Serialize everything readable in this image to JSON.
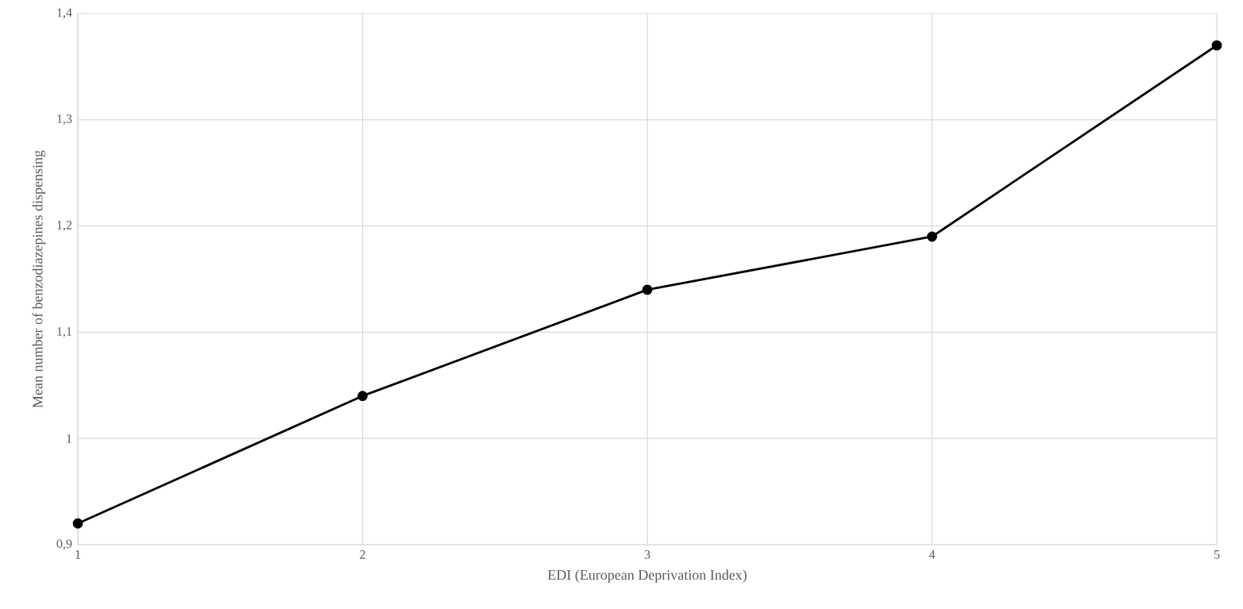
{
  "chart_data": {
    "type": "line",
    "xlabel": "EDI (European Deprivation Index)",
    "ylabel": "Mean number of benzodiazepines dispensing",
    "x": [
      1,
      2,
      3,
      4,
      5
    ],
    "values": [
      0.92,
      1.04,
      1.14,
      1.19,
      1.37
    ],
    "color": "#000000",
    "marker": "circle",
    "line_style": "solid",
    "xlim": [
      1,
      5
    ],
    "ylim": [
      0.9,
      1.4
    ],
    "xticks": [
      1,
      2,
      3,
      4,
      5
    ],
    "yticks": [
      {
        "value": 0.9,
        "label": "0,9"
      },
      1,
      {
        "value": 1.1,
        "label": "1,1"
      },
      {
        "value": 1.2,
        "label": "1,2"
      },
      {
        "value": 1.3,
        "label": "1,3"
      },
      {
        "value": 1.4,
        "label": "1,4"
      }
    ],
    "grid": true
  }
}
